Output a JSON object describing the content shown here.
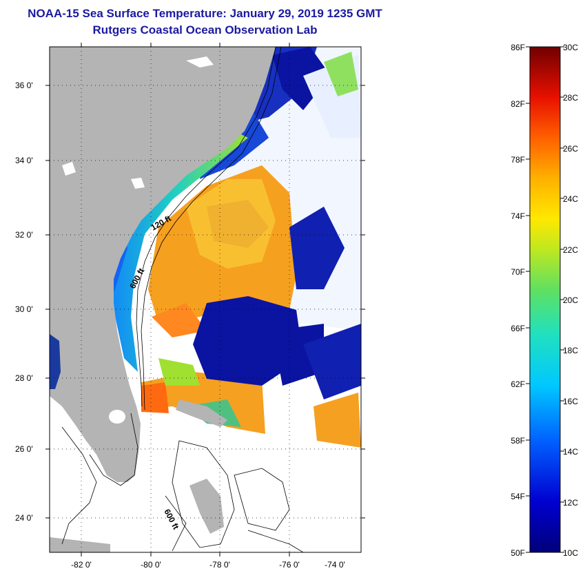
{
  "header": {
    "title": "NOAA-15 Sea Surface Temperature:  January 29, 2019 1235 GMT",
    "subtitle": "Rutgers Coastal Ocean Observation Lab"
  },
  "map": {
    "lat_labels": [
      "36 0'",
      "34 0'",
      "32 0'",
      "30 0'",
      "28 0'",
      "26 0'",
      "24 0'"
    ],
    "lon_labels": [
      "-82 0'",
      "-80 0'",
      "-78 0'",
      "-76 0'",
      "-74 0'"
    ],
    "contours": {
      "label_120ft_a": "120 ft",
      "label_600ft_a": "600 ft",
      "label_600ft_b": "600 ft"
    },
    "colors": {
      "land": "#b4b4b4",
      "cloud": "#ffffff",
      "cold": "#0a0aa0",
      "warm": "#ff8c14"
    }
  },
  "colorbar": {
    "fahrenheit_labels": [
      "86F",
      "82F",
      "78F",
      "74F",
      "70F",
      "66F",
      "62F",
      "58F",
      "54F",
      "50F"
    ],
    "celsius_labels": [
      "30C",
      "28C",
      "26C",
      "24C",
      "22C",
      "20C",
      "18C",
      "16C",
      "14C",
      "12C",
      "10C"
    ]
  }
}
